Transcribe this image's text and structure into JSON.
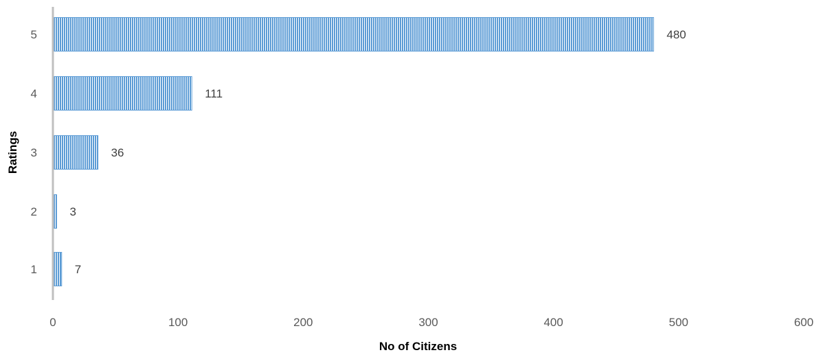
{
  "chart_data": {
    "type": "bar",
    "orientation": "horizontal",
    "categories": [
      "1",
      "2",
      "3",
      "4",
      "5"
    ],
    "values": [
      7,
      3,
      36,
      111,
      480
    ],
    "data_labels": [
      "7",
      "3",
      "36",
      "111",
      "480"
    ],
    "xlabel": "No of Citizens",
    "ylabel": "Ratings",
    "xlim": [
      0,
      600
    ],
    "x_ticks": [
      "0",
      "100",
      "200",
      "300",
      "400",
      "500",
      "600"
    ],
    "grid": false,
    "legend": "none",
    "colors": {
      "bar_fill": "#5b9bd5",
      "bar_stripe": "#ffffff",
      "axis_line": "#bfbfbf"
    },
    "bar_pattern": "vertical-stripes"
  }
}
